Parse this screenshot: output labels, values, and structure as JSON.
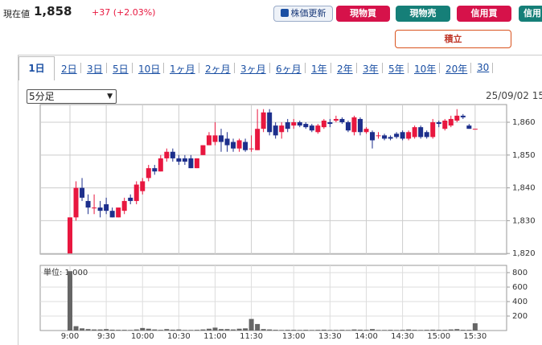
{
  "header": {
    "label": "現在値",
    "price": "1,858",
    "change": "+37 (+2.03%)"
  },
  "buttons": {
    "refresh": "株価更新",
    "spot_buy": "現物買",
    "spot_sell": "現物売",
    "margin_buy": "信用買",
    "margin_sell": "信用",
    "accumulate": "積立"
  },
  "tabs": [
    "1日",
    "2日",
    "3日",
    "5日",
    "10日",
    "1ヶ月",
    "2ヶ月",
    "3ヶ月",
    "6ヶ月",
    "1年",
    "2年",
    "3年",
    "5年",
    "10年",
    "20年",
    "30"
  ],
  "interval_select": "5分足",
  "date": "25/09/02 15",
  "chart_data": {
    "type": "candlestick",
    "up_color": "#e8173f",
    "down_color": "#1d2f8c",
    "grid": true,
    "categories": [
      "9:00",
      null,
      null,
      null,
      null,
      null,
      "9:30",
      null,
      null,
      null,
      null,
      null,
      "10:00",
      null,
      null,
      null,
      null,
      null,
      "10:30",
      null,
      null,
      null,
      null,
      null,
      "11:00",
      null,
      null,
      null,
      null,
      null,
      "11:30",
      null,
      null,
      null,
      null,
      null,
      null,
      "13:00",
      null,
      null,
      null,
      null,
      null,
      "13:30",
      null,
      null,
      null,
      null,
      null,
      "14:00",
      null,
      null,
      null,
      null,
      null,
      "14:30",
      null,
      null,
      null,
      null,
      null,
      "15:00",
      null,
      null,
      null,
      null,
      null,
      "15:30"
    ],
    "open": [
      1820,
      1831,
      1840,
      1836,
      1834,
      1834,
      1835,
      1833,
      1831,
      1833,
      1837,
      1836,
      1839,
      1843,
      1846,
      1845,
      1849,
      1851,
      1849,
      1849,
      1849,
      1846,
      1850,
      1853,
      1854,
      1856,
      1855,
      1854,
      1852,
      1854,
      1852,
      1851.5,
      1858,
      1863,
      1859,
      1857,
      1860,
      1859,
      1860,
      1859.5,
      1859,
      1857,
      1858.5,
      1860,
      1860.5,
      1861,
      1860,
      1857,
      1861,
      1857,
      1857,
      1856,
      1856,
      1855.5,
      1856.5,
      1857,
      1855,
      1855.5,
      1858.5,
      1857,
      1855.5,
      1860,
      1858,
      1859,
      1860.5,
      1862,
      1859,
      1858
    ],
    "high": [
      1831,
      1842,
      1843,
      1838,
      1838,
      1836,
      1837,
      1834,
      1834,
      1837,
      1838,
      1842,
      1843,
      1847,
      1847,
      1850,
      1852,
      1852,
      1850,
      1850,
      1850,
      1849,
      1853,
      1857,
      1860,
      1858,
      1857,
      1855,
      1855,
      1855,
      1856,
      1864,
      1864,
      1864,
      1860,
      1860,
      1861,
      1861,
      1860.5,
      1860,
      1859.5,
      1859.5,
      1861,
      1861,
      1862,
      1861.5,
      1860.5,
      1862,
      1861.5,
      1858.5,
      1857.5,
      1857,
      1856.5,
      1856,
      1857,
      1857.5,
      1857.5,
      1859,
      1859,
      1857.5,
      1861,
      1860.5,
      1861,
      1862,
      1864,
      1862.5,
      1859.5,
      1858
    ],
    "low": [
      1820,
      1830,
      1836,
      1832,
      1832,
      1831,
      1832,
      1831,
      1831,
      1832,
      1835,
      1835,
      1838,
      1842,
      1844,
      1845,
      1848,
      1848,
      1847,
      1847,
      1846,
      1846,
      1850,
      1853,
      1853,
      1851,
      1851,
      1851,
      1851,
      1851,
      1851,
      1851.5,
      1857,
      1856,
      1855,
      1855,
      1857,
      1858,
      1858.5,
      1858,
      1857,
      1856.5,
      1858,
      1858.5,
      1860,
      1859.5,
      1857,
      1856,
      1856,
      1856.5,
      1852,
      1855,
      1854.5,
      1854.5,
      1855,
      1854.5,
      1854.5,
      1855,
      1855,
      1855,
      1855,
      1858.5,
      1857.5,
      1858.5,
      1860,
      1861,
      1858,
      1858
    ],
    "close": [
      1831,
      1840,
      1837,
      1834,
      1834,
      1833,
      1833,
      1831,
      1834,
      1836,
      1836,
      1841,
      1842,
      1846,
      1845,
      1849,
      1851,
      1849,
      1848,
      1848,
      1846,
      1849,
      1853,
      1856,
      1856,
      1854,
      1853,
      1852,
      1854.5,
      1851.5,
      1852,
      1858,
      1863,
      1857,
      1856,
      1859,
      1858,
      1860,
      1859,
      1858.5,
      1857.5,
      1859,
      1860.5,
      1859.5,
      1861,
      1860,
      1857.5,
      1861.5,
      1857,
      1858,
      1854.5,
      1856,
      1855,
      1855,
      1855.5,
      1855,
      1857,
      1858.5,
      1855.5,
      1855.5,
      1860,
      1859.5,
      1860.5,
      1861,
      1862,
      1861.5,
      1858,
      1858
    ],
    "ylim": [
      1819.8,
      1865.4
    ],
    "yticks": [
      {
        "value": 1820,
        "label": "1,820"
      },
      {
        "value": 1830,
        "label": "1,830"
      },
      {
        "value": 1840,
        "label": "1,840"
      },
      {
        "value": 1850,
        "label": "1,850"
      },
      {
        "value": 1860,
        "label": "1,860"
      }
    ],
    "volume": {
      "label": "単位: 1,000",
      "color": "#666666",
      "values": [
        820,
        60,
        30,
        20,
        15,
        15,
        20,
        12,
        10,
        10,
        8,
        15,
        35,
        25,
        15,
        10,
        20,
        12,
        15,
        8,
        8,
        10,
        15,
        25,
        40,
        20,
        20,
        15,
        25,
        30,
        160,
        90,
        20,
        15,
        10,
        8,
        10,
        10,
        8,
        10,
        8,
        10,
        12,
        8,
        8,
        10,
        8,
        15,
        12,
        10,
        20,
        8,
        8,
        10,
        8,
        10,
        15,
        10,
        8,
        10,
        12,
        10,
        10,
        15,
        20,
        10,
        10,
        100
      ],
      "ylim": [
        0,
        900
      ],
      "yticks": [
        200,
        400,
        600,
        800
      ]
    }
  }
}
